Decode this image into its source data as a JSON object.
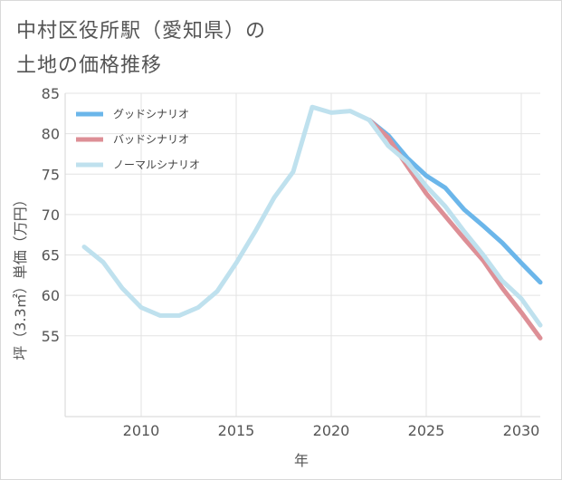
{
  "title_lines": [
    "中村区役所駅（愛知県）の",
    "土地の価格推移"
  ],
  "chart_data": {
    "type": "line",
    "xlabel": "年",
    "ylabel": "坪（3.3㎡）単価（万円）",
    "xlim": [
      2006,
      2031
    ],
    "ylim": [
      45,
      85
    ],
    "xticks": [
      2010,
      2015,
      2020,
      2025,
      2030
    ],
    "yticks": [
      55,
      60,
      65,
      70,
      75,
      80,
      85
    ],
    "grid": true,
    "legend_position": "top-left",
    "series": [
      {
        "name": "グッドシナリオ",
        "color": "#6bb6ea",
        "x": [
          2022,
          2023,
          2024,
          2025,
          2026,
          2027,
          2028,
          2029,
          2030,
          2031
        ],
        "values": [
          81.7,
          79.8,
          77.0,
          74.8,
          73.3,
          70.6,
          68.6,
          66.5,
          64.0,
          61.6
        ]
      },
      {
        "name": "バッドシナリオ",
        "color": "#dd8f96",
        "x": [
          2022,
          2023,
          2024,
          2025,
          2026,
          2027,
          2028,
          2029,
          2030,
          2031
        ],
        "values": [
          81.7,
          79.5,
          76.0,
          72.6,
          69.8,
          67.0,
          64.3,
          60.9,
          57.9,
          54.7
        ]
      },
      {
        "name": "ノーマルシナリオ",
        "color": "#bfe1ee",
        "x": [
          2007,
          2008,
          2009,
          2010,
          2011,
          2012,
          2013,
          2014,
          2015,
          2016,
          2017,
          2018,
          2019,
          2020,
          2021,
          2022,
          2023,
          2024,
          2025,
          2026,
          2027,
          2028,
          2029,
          2030,
          2031
        ],
        "values": [
          66.0,
          64.1,
          60.9,
          58.5,
          57.5,
          57.5,
          58.5,
          60.5,
          64.0,
          67.9,
          72.1,
          75.3,
          83.3,
          82.6,
          82.8,
          81.7,
          78.5,
          76.5,
          73.5,
          71.0,
          67.9,
          65.0,
          61.8,
          59.6,
          56.3
        ]
      }
    ]
  }
}
